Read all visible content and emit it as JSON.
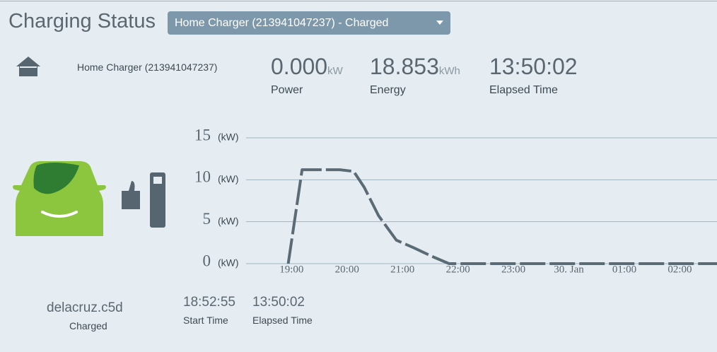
{
  "header": {
    "title": "Charging Status",
    "dropdown": "Home Charger (213941047237) - Charged"
  },
  "charger": {
    "name": "Home Charger (213941047237)"
  },
  "stats": [
    {
      "value": "0.000",
      "unit": "kW",
      "label": "Power"
    },
    {
      "value": "18.853",
      "unit": "kWh",
      "label": "Energy"
    },
    {
      "value": "13:50:02",
      "label": "Elapsed Time"
    }
  ],
  "vehicle": {
    "name": "delacruz.c5d",
    "status": "Charged"
  },
  "session": [
    {
      "value": "18:52:55",
      "label": "Start Time"
    },
    {
      "value": "13:50:02",
      "label": "Elapsed Time"
    }
  ],
  "chart_data": {
    "type": "line",
    "y_unit": "(kW)",
    "color": "#5b6b76",
    "x": [
      18.94,
      19.19,
      19.87,
      20.12,
      20.31,
      20.57,
      20.89,
      21.2,
      21.52,
      21.84,
      22.5,
      23.5,
      24.5,
      25.5,
      26.67
    ],
    "values": [
      0,
      11.2,
      11.2,
      11,
      9.1,
      5.7,
      2.8,
      1.9,
      0.9,
      0,
      0,
      0,
      0,
      0,
      0
    ],
    "xlim": [
      18.18,
      26.67
    ],
    "xticks": [
      {
        "value": 19,
        "label": "19:00"
      },
      {
        "value": 20,
        "label": "20:00"
      },
      {
        "value": 21,
        "label": "21:00"
      },
      {
        "value": 22,
        "label": "22:00"
      },
      {
        "value": 23,
        "label": "23:00"
      },
      {
        "value": 24,
        "label": "30. Jan"
      },
      {
        "value": 25,
        "label": "01:00"
      },
      {
        "value": 26,
        "label": "02:00"
      }
    ],
    "ylim": [
      0,
      15
    ],
    "yticks": [
      0,
      5,
      10,
      15
    ],
    "grid": true
  }
}
